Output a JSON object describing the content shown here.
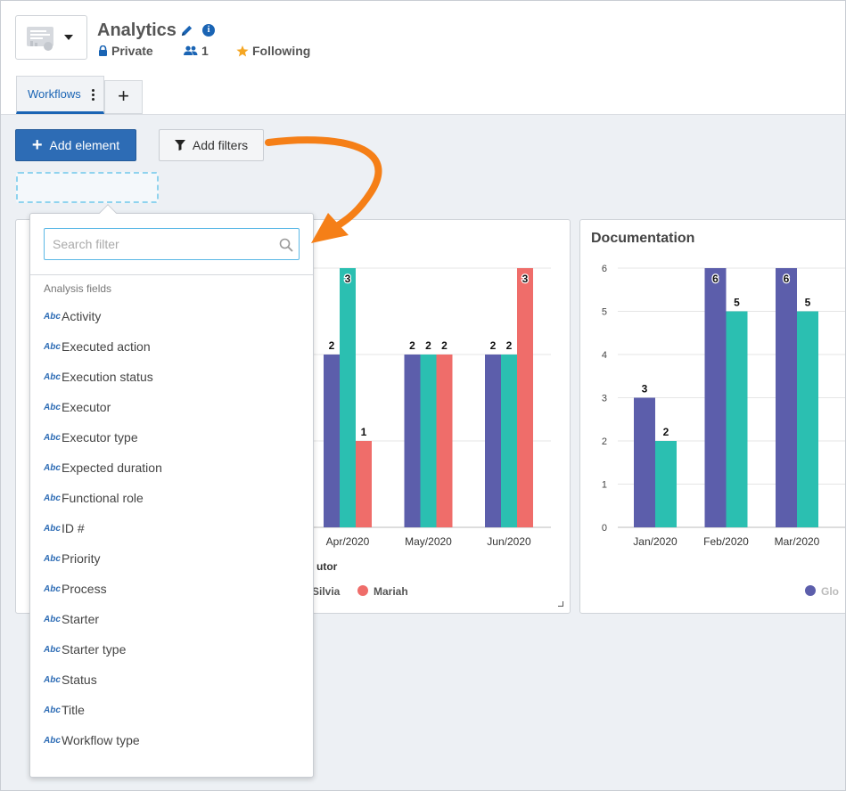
{
  "header": {
    "title": "Analytics",
    "privacy": "Private",
    "members_count": "1",
    "following": "Following"
  },
  "tabs": [
    {
      "label": "Workflows"
    }
  ],
  "toolbar": {
    "add_element": "Add element",
    "add_filters": "Add filters"
  },
  "filter_dropdown": {
    "search_placeholder": "Search filter",
    "section_label": "Analysis fields",
    "field_tag": "Abc",
    "fields": [
      "Activity",
      "Executed action",
      "Execution status",
      "Executor",
      "Executor type",
      "Expected duration",
      "Functional role",
      "ID #",
      "Priority",
      "Process",
      "Starter",
      "Starter type",
      "Status",
      "Title",
      "Workflow type"
    ]
  },
  "colors": {
    "primary": "#2d6cb5",
    "series_purple": "#5c5eab",
    "series_teal": "#2bbfb1",
    "series_red": "#ef6d6a",
    "accent_orange": "#f57f17"
  },
  "chart_data": [
    {
      "type": "bar",
      "title": "",
      "categories": [
        "Apr/2020",
        "May/2020",
        "Jun/2020"
      ],
      "series": [
        {
          "color": "#5c5eab",
          "values": [
            2,
            2,
            2
          ]
        },
        {
          "name": "Silvia",
          "color": "#2bbfb1",
          "values": [
            3,
            2,
            2
          ]
        },
        {
          "name": "Mariah",
          "color": "#ef6d6a",
          "values": [
            1,
            2,
            3
          ]
        }
      ],
      "legend_title_visible": "utor",
      "ylim": [
        0,
        3
      ]
    },
    {
      "type": "bar",
      "title": "Documentation",
      "categories": [
        "Jan/2020",
        "Feb/2020",
        "Mar/2020"
      ],
      "yticks": [
        "0",
        "1",
        "2",
        "3",
        "4",
        "5",
        "6"
      ],
      "series": [
        {
          "name": "Glo",
          "color": "#5c5eab",
          "values": [
            3,
            6,
            6
          ]
        },
        {
          "color": "#2bbfb1",
          "values": [
            2,
            5,
            5
          ]
        }
      ],
      "ylim": [
        0,
        6
      ]
    }
  ]
}
